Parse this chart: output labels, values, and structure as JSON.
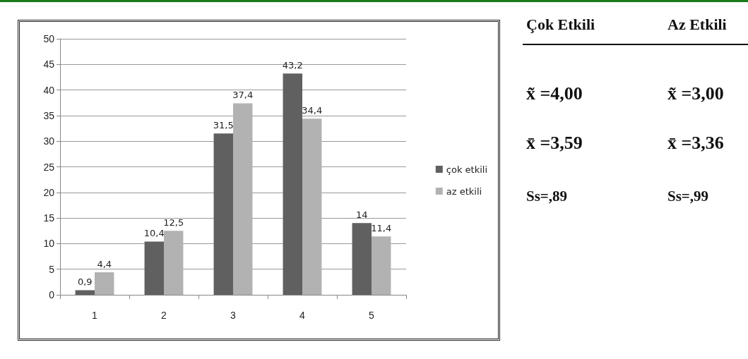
{
  "chart_data": [
    {
      "type": "bar",
      "categories": [
        "1",
        "2",
        "3",
        "4",
        "5"
      ],
      "series": [
        {
          "name": "çok etkili",
          "color": "#606060",
          "values": [
            0.9,
            10.4,
            31.5,
            43.2,
            14
          ],
          "value_labels": [
            "0,9",
            "10,4",
            "31,5",
            "43,2",
            "14"
          ]
        },
        {
          "name": "az etkili",
          "color": "#b2b2b2",
          "values": [
            4.4,
            12.5,
            37.4,
            34.4,
            11.4
          ],
          "value_labels": [
            "4,4",
            "12,5",
            "37,4",
            "34,4",
            "11,4"
          ]
        }
      ],
      "ylim": [
        0,
        50
      ],
      "yticks": [
        0,
        5,
        10,
        15,
        20,
        25,
        30,
        35,
        40,
        45,
        50
      ],
      "grid": "y",
      "legend": "right"
    },
    {
      "type": "other",
      "annotations": [
        "Çok Etkili",
        "Az Etkili",
        "x̃ =4,00",
        "x̃ =3,00",
        "x̄ =3,59",
        "x̄ =3,36",
        "Ss=,89",
        "Ss=,99"
      ]
    }
  ]
}
